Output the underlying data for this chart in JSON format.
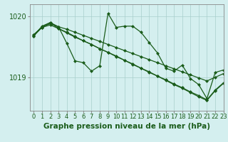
{
  "background_color": "#d4efef",
  "grid_color": "#a8cecc",
  "line_color": "#1a5c1a",
  "xlabel": "Graphe pression niveau de la mer (hPa)",
  "xlabel_fontsize": 7.5,
  "tick_fontsize": 6,
  "ylim": [
    1018.45,
    1020.2
  ],
  "yticks": [
    1019,
    1020
  ],
  "xlim": [
    -0.5,
    23
  ],
  "s1": [
    1019.7,
    1019.83,
    1019.88,
    1019.83,
    1019.79,
    1019.74,
    1019.69,
    1019.64,
    1019.59,
    1019.54,
    1019.49,
    1019.44,
    1019.39,
    1019.34,
    1019.29,
    1019.24,
    1019.19,
    1019.14,
    1019.09,
    1019.04,
    1018.99,
    1018.94,
    1019.0,
    1019.06
  ],
  "s2": [
    1019.68,
    1019.82,
    1019.86,
    1019.8,
    1019.73,
    1019.66,
    1019.6,
    1019.54,
    1019.47,
    1019.41,
    1019.34,
    1019.28,
    1019.21,
    1019.15,
    1019.08,
    1019.02,
    1018.95,
    1018.88,
    1018.82,
    1018.75,
    1018.68,
    1018.62,
    1018.78,
    1018.9
  ],
  "s3": [
    1019.7,
    1019.82,
    1019.9,
    1019.8,
    1019.74,
    1019.67,
    1019.6,
    1019.54,
    1019.47,
    1019.41,
    1019.35,
    1019.28,
    1019.22,
    1019.15,
    1019.09,
    1019.02,
    1018.96,
    1018.89,
    1018.83,
    1018.76,
    1018.7,
    1018.63,
    1018.79,
    1018.91
  ],
  "s4": [
    1019.68,
    1019.84,
    1019.9,
    1019.83,
    1019.56,
    1019.27,
    1019.24,
    1019.1,
    1019.19,
    1020.05,
    1019.82,
    1019.84,
    1019.84,
    1019.74,
    1019.57,
    1019.4,
    1019.15,
    1019.1,
    1019.2,
    1018.98,
    1018.88,
    1018.65,
    1019.08,
    1019.12
  ]
}
